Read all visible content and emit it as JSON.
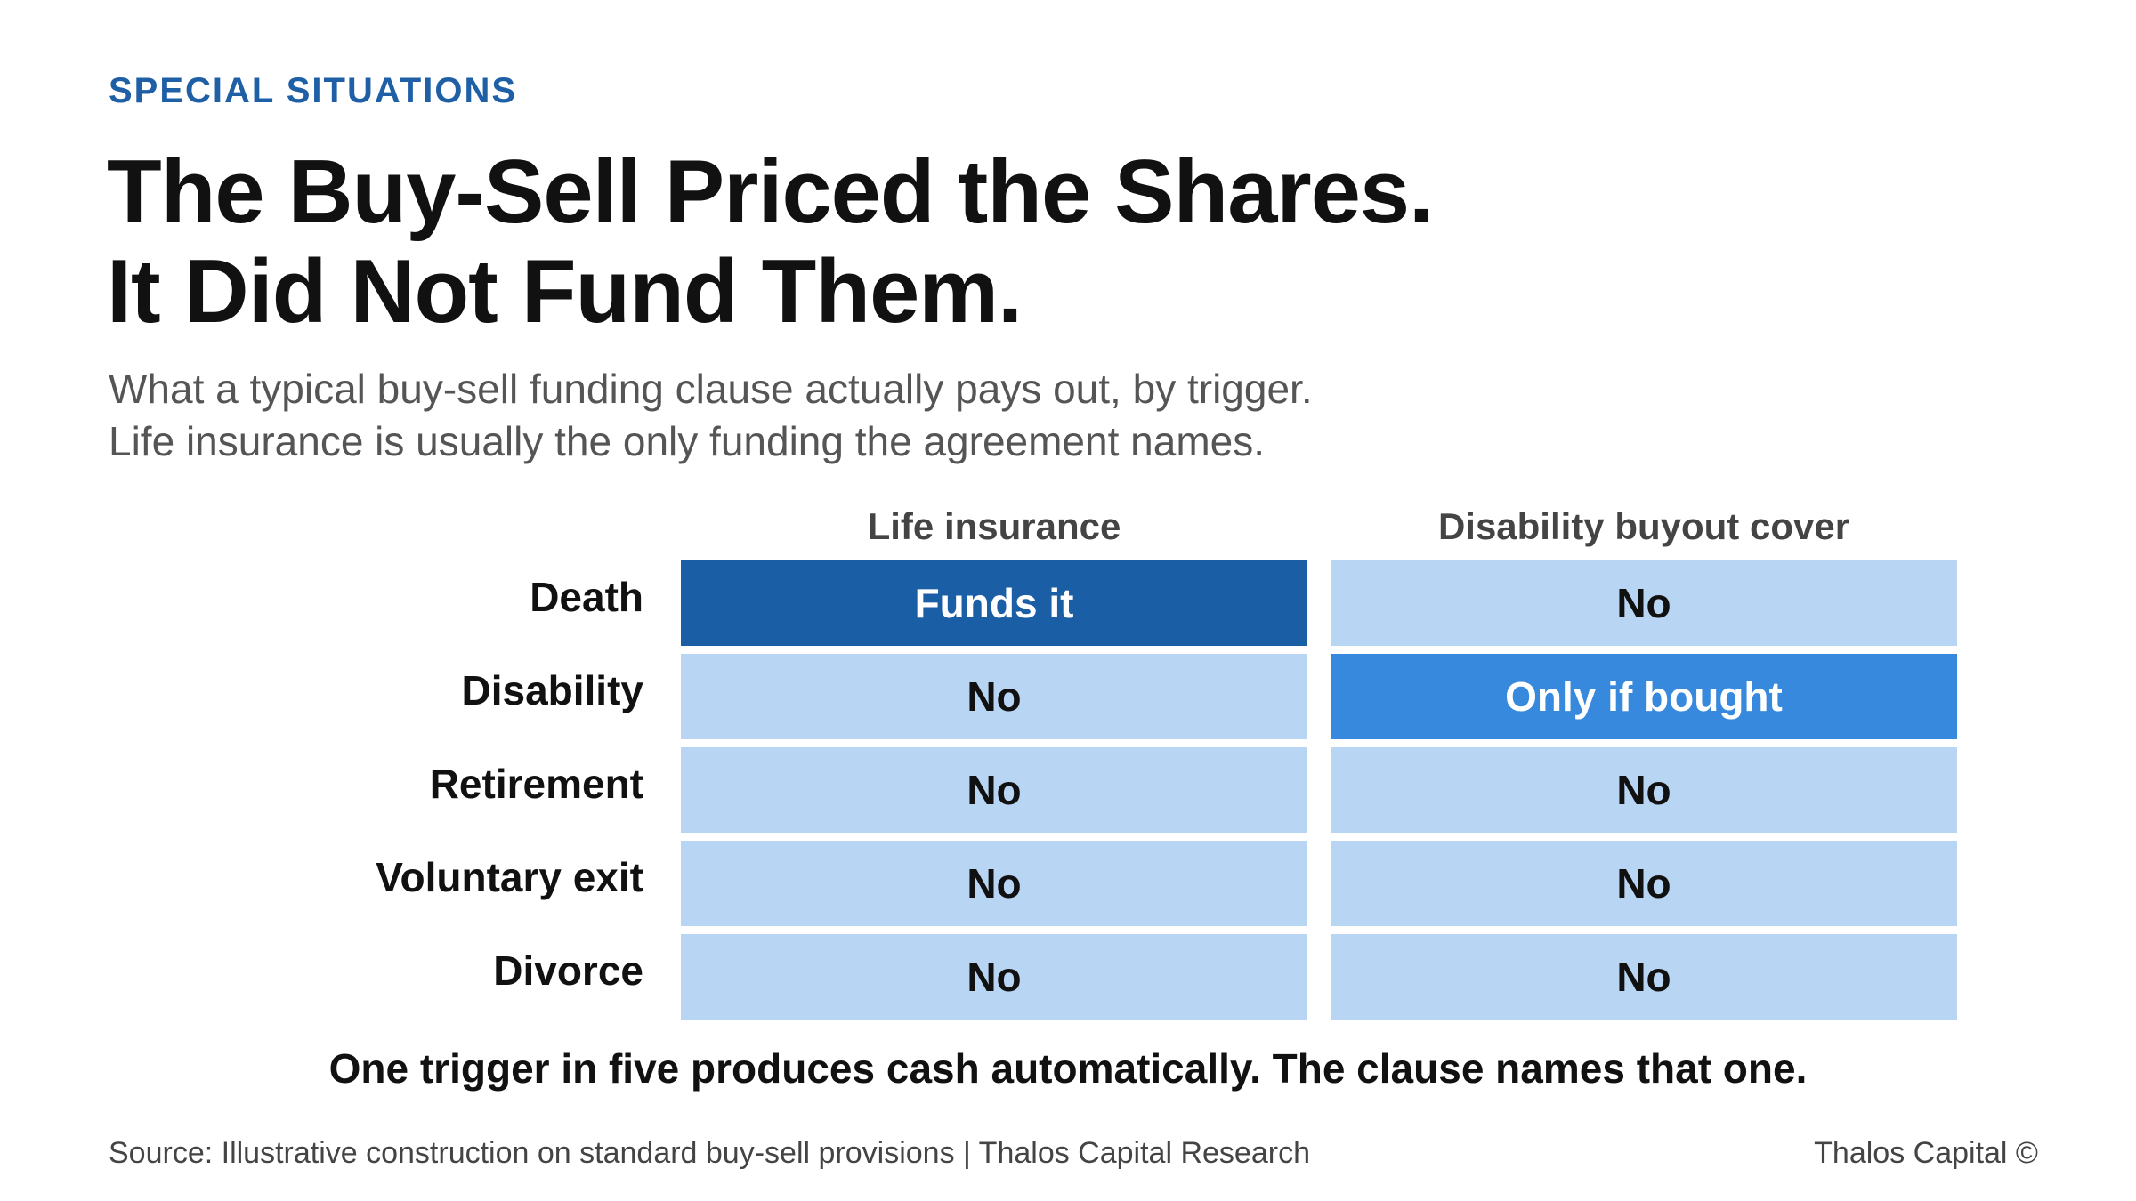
{
  "kicker": "SPECIAL SITUATIONS",
  "title_lines": [
    "The Buy-Sell Priced the Shares.",
    "It Did Not Fund Them."
  ],
  "subtitle_lines": [
    "What a typical buy-sell funding clause actually pays out, by trigger.",
    "Life insurance is usually the only funding the agreement names."
  ],
  "chart_data": {
    "type": "table",
    "columns": [
      "Life insurance",
      "Disability buyout cover"
    ],
    "rows": [
      {
        "label": "Death",
        "cells": [
          {
            "text": "Funds it",
            "status": "funds"
          },
          {
            "text": "No",
            "status": "no"
          }
        ]
      },
      {
        "label": "Disability",
        "cells": [
          {
            "text": "No",
            "status": "no"
          },
          {
            "text": "Only if bought",
            "status": "conditional"
          }
        ]
      },
      {
        "label": "Retirement",
        "cells": [
          {
            "text": "No",
            "status": "no"
          },
          {
            "text": "No",
            "status": "no"
          }
        ]
      },
      {
        "label": "Voluntary exit",
        "cells": [
          {
            "text": "No",
            "status": "no"
          },
          {
            "text": "No",
            "status": "no"
          }
        ]
      },
      {
        "label": "Divorce",
        "cells": [
          {
            "text": "No",
            "status": "no"
          },
          {
            "text": "No",
            "status": "no"
          }
        ]
      }
    ]
  },
  "colors": {
    "funds": "#1a5ea5",
    "conditional": "#3789de",
    "no": "#b8d5f3",
    "kicker": "#1f5fa6"
  },
  "takeaway": "One trigger in five produces cash automatically. The clause names that one.",
  "footer": {
    "source": "Source: Illustrative construction on standard buy-sell provisions | Thalos Capital Research",
    "brand": "Thalos Capital ©"
  }
}
